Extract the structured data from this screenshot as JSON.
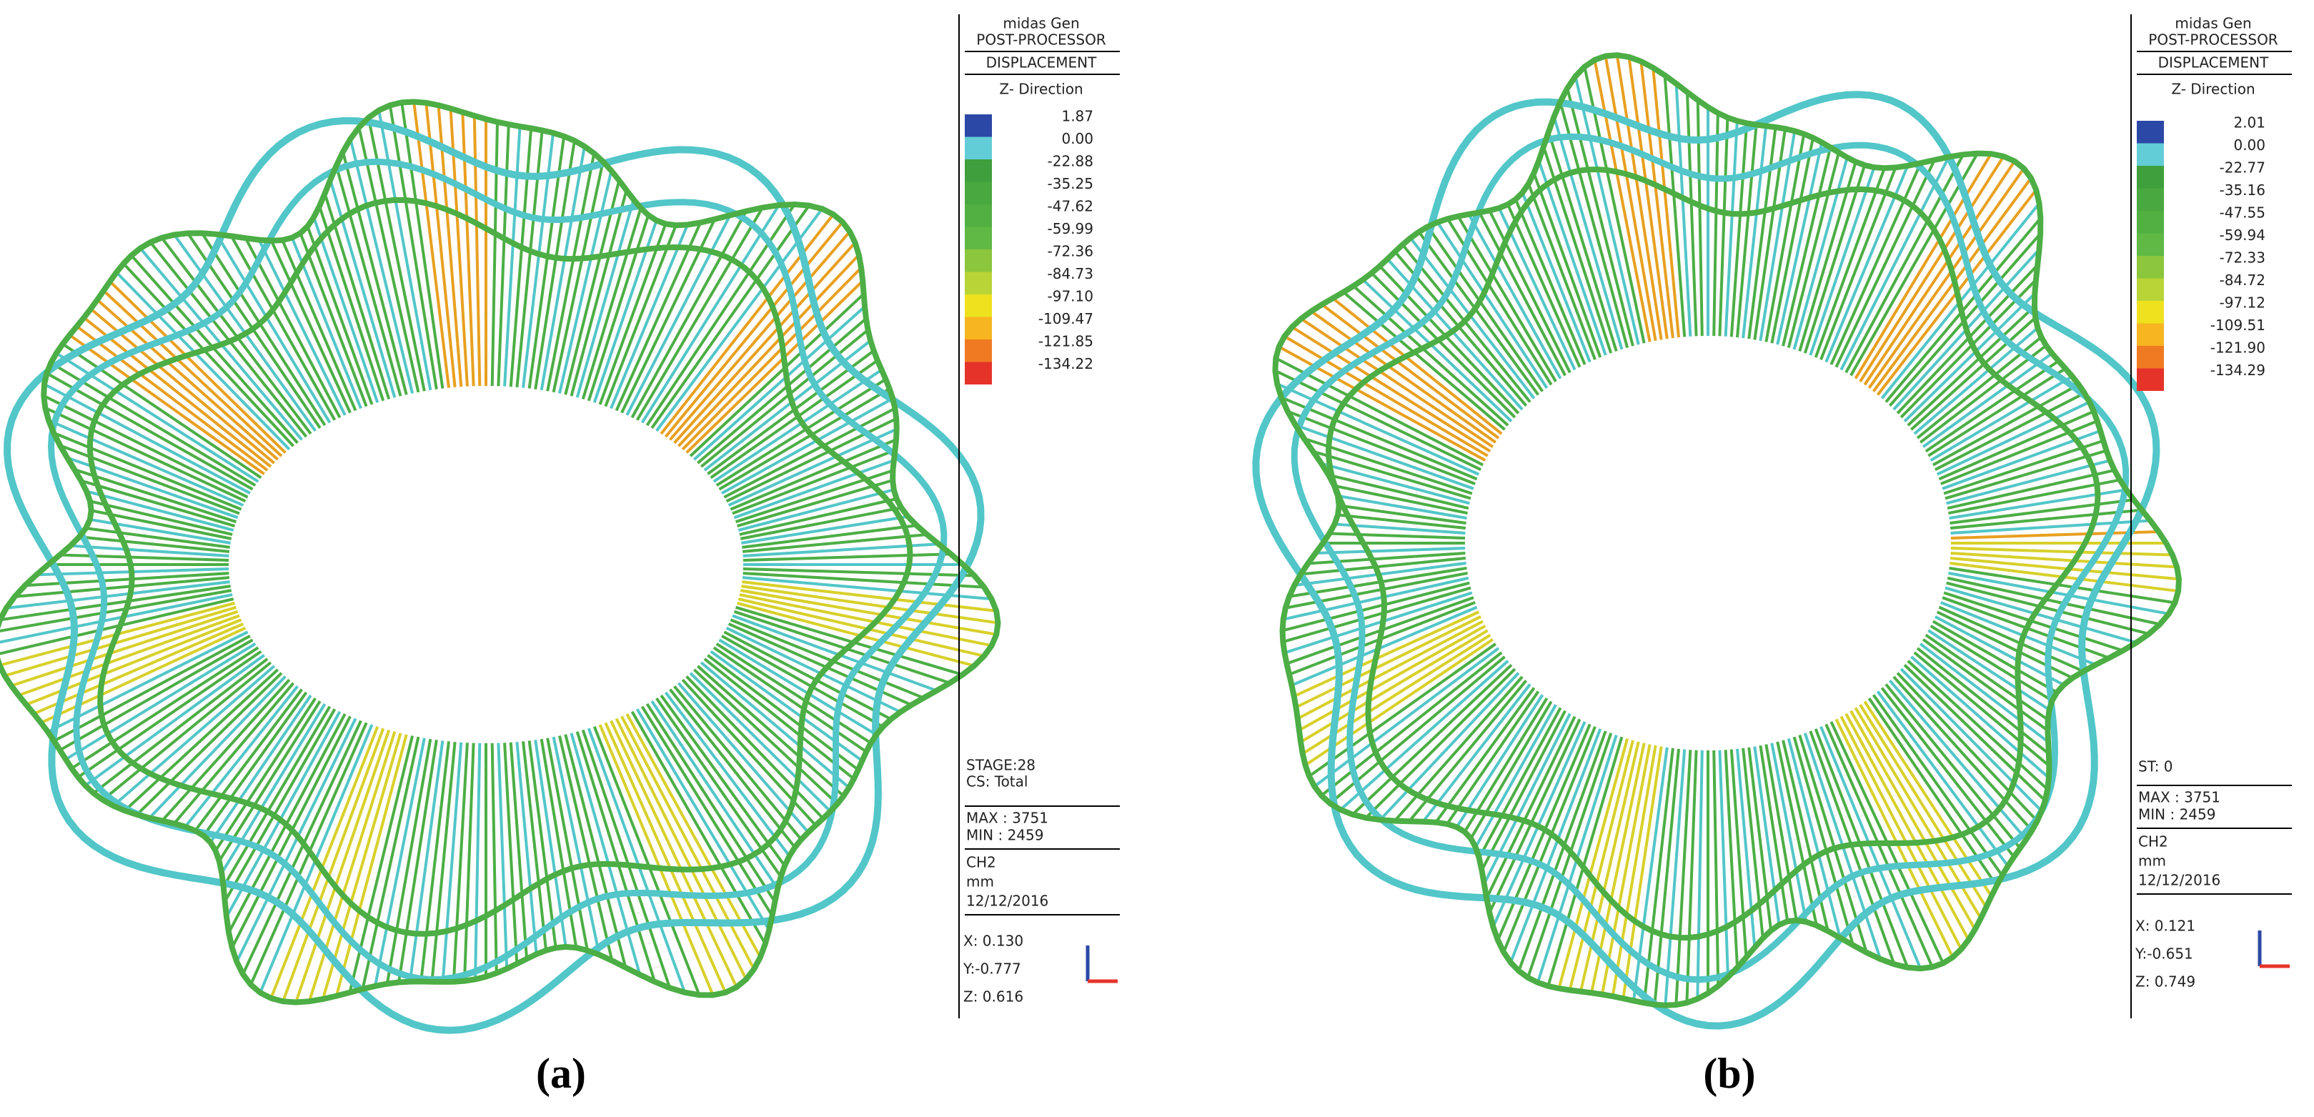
{
  "panels": [
    {
      "label": "(a)",
      "legend": {
        "software": "midas Gen",
        "module": "POST-PROCESSOR",
        "result": "DISPLACEMENT",
        "direction": "Z- Direction",
        "values": [
          "1.87",
          "0.00",
          "-22.88",
          "-35.25",
          "-47.62",
          "-59.99",
          "-72.36",
          "-84.73",
          "-97.10",
          "-109.47",
          "-121.85",
          "-134.22"
        ]
      },
      "stage": [
        "STAGE:28",
        "CS:  Total"
      ],
      "max": "MAX : 3751",
      "min": "MIN : 2459",
      "case": "CH2",
      "unit": "mm",
      "date": "12/12/2016",
      "view": [
        "X: 0.130",
        "Y:-0.777",
        "Z: 0.616"
      ]
    },
    {
      "label": "(b)",
      "legend": {
        "software": "midas Gen",
        "module": "POST-PROCESSOR",
        "result": "DISPLACEMENT",
        "direction": "Z- Direction",
        "values": [
          "2.01",
          "0.00",
          "-22.77",
          "-35.16",
          "-47.55",
          "-59.94",
          "-72.33",
          "-84.72",
          "-97.12",
          "-109.51",
          "-121.90",
          "-134.29"
        ]
      },
      "stage": [
        "ST:  0"
      ],
      "max": "MAX : 3751",
      "min": "MIN : 2459",
      "case": "CH2",
      "unit": "mm",
      "date": "12/12/2016",
      "view": [
        "X: 0.121",
        "Y:-0.651",
        "Z: 0.749"
      ]
    }
  ]
}
